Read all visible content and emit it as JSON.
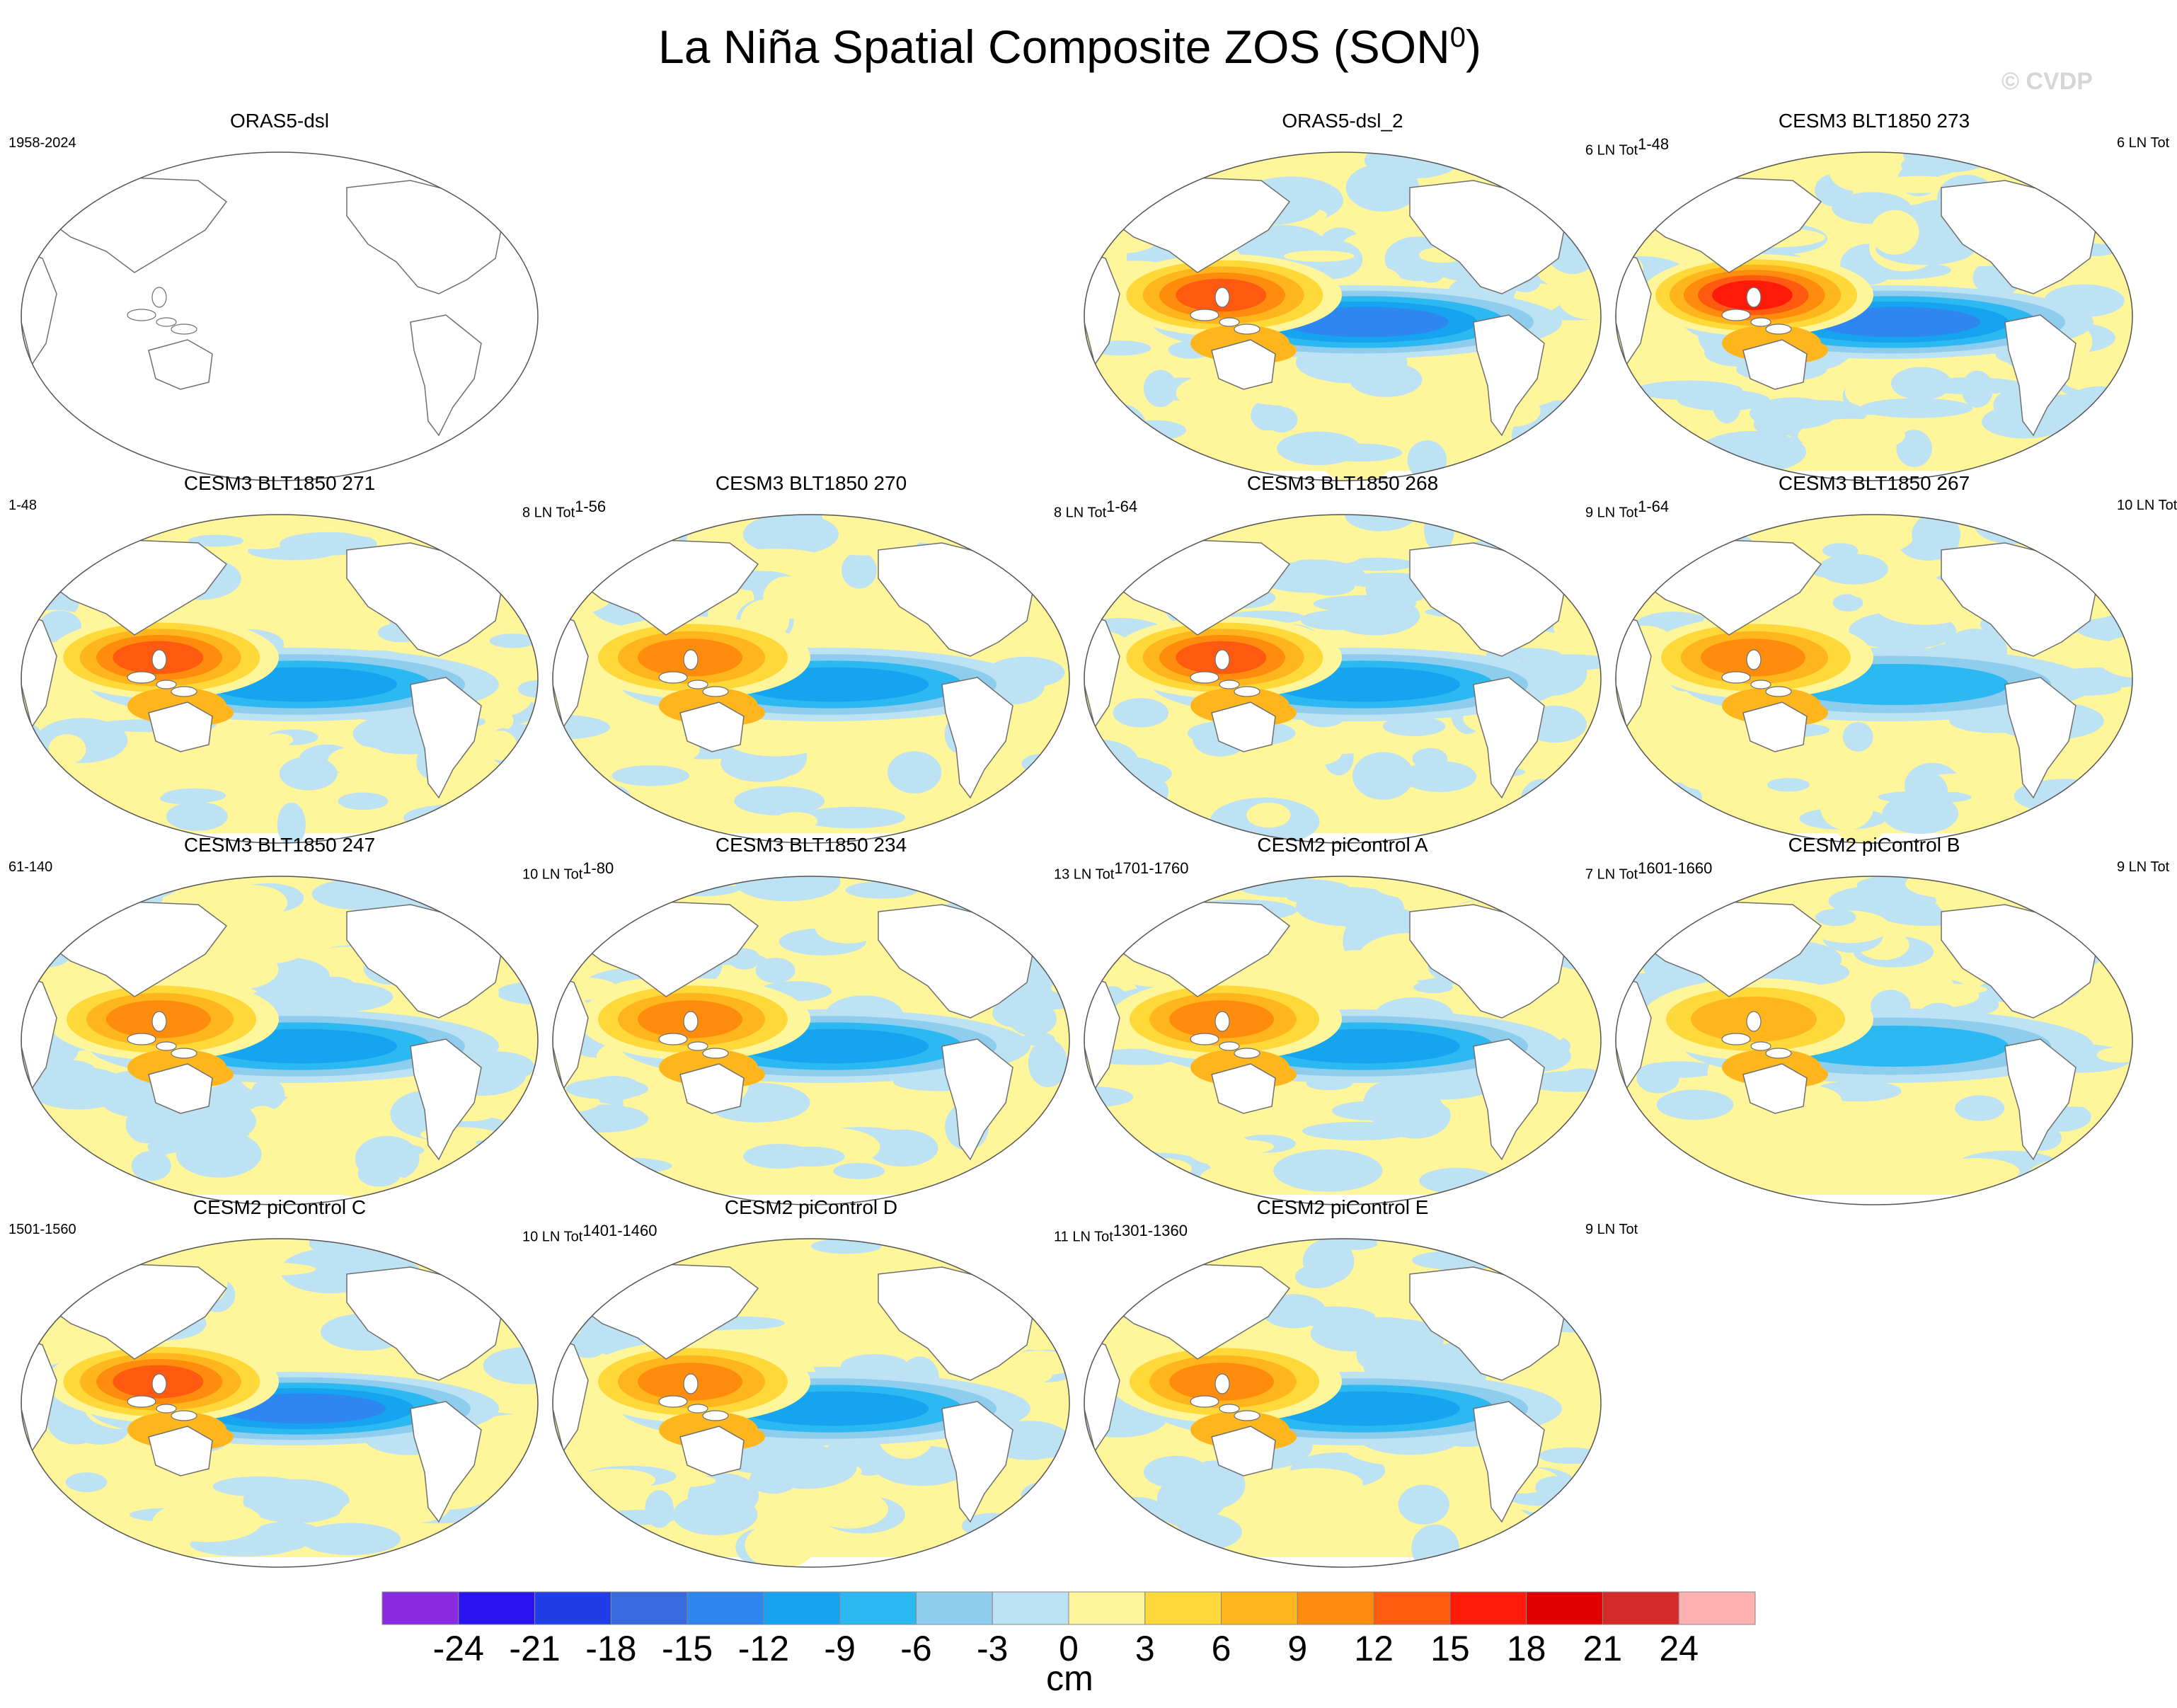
{
  "title": "La Niña Spatial Composite ZOS (SON",
  "title_sup": "0",
  "title_end": ")",
  "watermark": "© CVDP",
  "panels": [
    {
      "title": "ORAS5-dsl",
      "left": "1958-2024",
      "right": "",
      "empty": true
    },
    {
      "title": "ORAS5-dsl_2",
      "left": "",
      "right": "6 LN Tot",
      "right_sup": "1-48"
    },
    {
      "title": "CESM3 BLT1850 273",
      "left": "",
      "right": "6 LN Tot"
    },
    {
      "title": "CESM3 BLT1850 271",
      "left": "1-48",
      "right": "8 LN Tot",
      "right_sup": "1-56"
    },
    {
      "title": "CESM3 BLT1850 270",
      "left": "",
      "right": "8 LN Tot",
      "right_sup": "1-64"
    },
    {
      "title": "CESM3 BLT1850 268",
      "left": "",
      "right": "9 LN Tot",
      "right_sup": "1-64"
    },
    {
      "title": "CESM3 BLT1850 267",
      "left": "",
      "right": "10 LN Tot"
    },
    {
      "title": "CESM3 BLT1850 247",
      "left": "61-140",
      "right": "10 LN Tot",
      "right_sup": "1-80"
    },
    {
      "title": "CESM3 BLT1850 234",
      "left": "",
      "right": "13 LN Tot",
      "right_sup": "1701-1760"
    },
    {
      "title": "CESM2 piControl A",
      "left": "",
      "right": "7 LN Tot",
      "right_sup": "1601-1660"
    },
    {
      "title": "CESM2 piControl B",
      "left": "",
      "right": "9 LN Tot"
    },
    {
      "title": "CESM2 piControl C",
      "left": "1501-1560",
      "right": "10 LN Tot",
      "right_sup": "1401-1460"
    },
    {
      "title": "CESM2 piControl D",
      "left": "",
      "right": "11 LN Tot",
      "right_sup": "1301-1360"
    },
    {
      "title": "CESM2 piControl E",
      "left": "",
      "right": "9 LN Tot"
    }
  ],
  "chart_data": {
    "type": "heatmap",
    "title": "La Niña Spatial Composite ZOS (SON0)",
    "variable": "ZOS",
    "units": "cm",
    "colorbar": {
      "ticks": [
        -24,
        -21,
        -18,
        -15,
        -12,
        -9,
        -6,
        -3,
        0,
        3,
        6,
        9,
        12,
        15,
        18,
        21,
        24
      ],
      "colors": [
        "#8a2be2",
        "#2b13f0",
        "#1f3de6",
        "#3a6ae0",
        "#2e86f0",
        "#16a3f0",
        "#2cb8f0",
        "#8ecdee",
        "#bde2f3",
        "#fff59a",
        "#ffd83a",
        "#ffb61c",
        "#ff8c0c",
        "#ff5a10",
        "#ff1a0a",
        "#e00000",
        "#d42a2a",
        "#ffb0b0"
      ]
    },
    "panels": [
      {
        "name": "ORAS5-dsl",
        "period": "1958-2024",
        "data": "none"
      },
      {
        "name": "ORAS5-dsl_2",
        "events": 6,
        "period": "1-48",
        "west_pacific_max": 15,
        "east_pacific_min": -15
      },
      {
        "name": "CESM3 BLT1850 273",
        "events": 6,
        "west_pacific_max": 18,
        "east_pacific_min": -15
      },
      {
        "name": "CESM3 BLT1850 271",
        "events": 8,
        "period": "1-56",
        "west_pacific_max": 15,
        "east_pacific_min": -12
      },
      {
        "name": "CESM3 BLT1850 270",
        "events": 8,
        "period": "1-64",
        "west_pacific_max": 12,
        "east_pacific_min": -12
      },
      {
        "name": "CESM3 BLT1850 268",
        "events": 9,
        "period": "1-64",
        "west_pacific_max": 15,
        "east_pacific_min": -12
      },
      {
        "name": "CESM3 BLT1850 267",
        "events": 10,
        "west_pacific_max": 12,
        "east_pacific_min": -9
      },
      {
        "name": "CESM3 BLT1850 247",
        "events": 10,
        "period": "1-80",
        "west_pacific_max": 12,
        "east_pacific_min": -12
      },
      {
        "name": "CESM3 BLT1850 234",
        "events": 13,
        "period": "1701-1760",
        "west_pacific_max": 12,
        "east_pacific_min": -12
      },
      {
        "name": "CESM2 piControl A",
        "events": 7,
        "period": "1601-1660",
        "west_pacific_max": 12,
        "east_pacific_min": -12
      },
      {
        "name": "CESM2 piControl B",
        "events": 9,
        "west_pacific_max": 9,
        "east_pacific_min": -9
      },
      {
        "name": "CESM2 piControl C",
        "events": 10,
        "period": "1401-1460",
        "west_pacific_max": 15,
        "east_pacific_min": -15
      },
      {
        "name": "CESM2 piControl D",
        "events": 11,
        "period": "1301-1360",
        "west_pacific_max": 12,
        "east_pacific_min": -12
      },
      {
        "name": "CESM2 piControl E",
        "events": 9,
        "west_pacific_max": 12,
        "east_pacific_min": -12
      }
    ]
  }
}
